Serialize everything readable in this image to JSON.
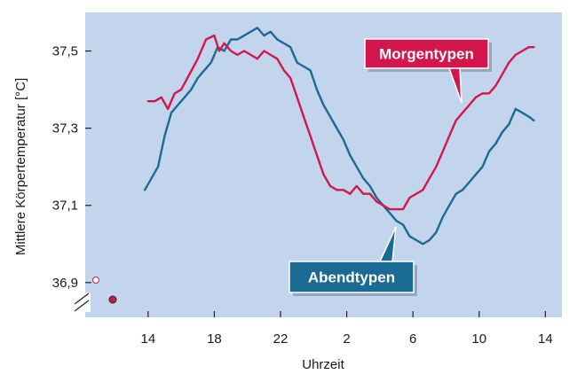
{
  "chart_data": {
    "type": "line",
    "xlabel": "Uhrzeit",
    "ylabel": "Mittlere Körpertemperatur [°C]",
    "x_ticks": [
      {
        "value": 14,
        "label": "14"
      },
      {
        "value": 18,
        "label": "18"
      },
      {
        "value": 22,
        "label": "22"
      },
      {
        "value": 26,
        "label": "2"
      },
      {
        "value": 30,
        "label": "6"
      },
      {
        "value": 34,
        "label": "10"
      },
      {
        "value": 38,
        "label": "14"
      }
    ],
    "y_ticks": [
      {
        "value": 36.9,
        "label": "36,9"
      },
      {
        "value": 37.1,
        "label": "37,1"
      },
      {
        "value": 37.3,
        "label": "37,3"
      },
      {
        "value": 37.5,
        "label": "37,5"
      }
    ],
    "xlim": [
      10.2,
      39
    ],
    "ylim": [
      36.81,
      37.6
    ],
    "grid": false,
    "axis_break": true,
    "colors": {
      "background": "#c2d5ec",
      "morgentypen": "#d3174c",
      "abendtypen": "#1a6b94"
    },
    "series": [
      {
        "name": "Morgentypen",
        "x": [
          14,
          14.4,
          14.8,
          15.2,
          15.6,
          16,
          16.5,
          17,
          17.5,
          18,
          18.3,
          18.6,
          19,
          19.4,
          19.8,
          20.2,
          20.6,
          21,
          21.4,
          21.8,
          22.2,
          22.6,
          23,
          23.4,
          23.8,
          24.2,
          24.6,
          25,
          25.4,
          25.8,
          26.2,
          26.6,
          27,
          27.4,
          27.8,
          28.2,
          28.6,
          29,
          29.4,
          29.8,
          30.2,
          30.6,
          31,
          31.4,
          31.8,
          32.2,
          32.6,
          33,
          33.4,
          33.8,
          34.2,
          34.6,
          35,
          35.4,
          35.8,
          36.2,
          36.6,
          37,
          37.3
        ],
        "y": [
          37.37,
          37.37,
          37.38,
          37.35,
          37.39,
          37.4,
          37.44,
          37.48,
          37.53,
          37.54,
          37.5,
          37.52,
          37.5,
          37.49,
          37.5,
          37.49,
          37.48,
          37.5,
          37.49,
          37.48,
          37.45,
          37.43,
          37.38,
          37.33,
          37.28,
          37.23,
          37.18,
          37.15,
          37.14,
          37.14,
          37.13,
          37.15,
          37.13,
          37.13,
          37.11,
          37.1,
          37.09,
          37.09,
          37.09,
          37.12,
          37.13,
          37.14,
          37.17,
          37.2,
          37.24,
          37.28,
          37.32,
          37.34,
          37.36,
          37.38,
          37.39,
          37.39,
          37.41,
          37.44,
          37.47,
          37.49,
          37.5,
          37.51,
          37.51
        ]
      },
      {
        "name": "Abendtypen",
        "x": [
          13.8,
          14.2,
          14.6,
          15,
          15.4,
          15.8,
          16.2,
          16.6,
          17,
          17.4,
          17.8,
          18.2,
          18.6,
          19,
          19.4,
          19.8,
          20.2,
          20.6,
          21,
          21.4,
          21.8,
          22.2,
          22.6,
          23,
          23.4,
          23.8,
          24.2,
          24.6,
          25,
          25.4,
          25.8,
          26.2,
          26.6,
          27,
          27.4,
          27.8,
          28.2,
          28.6,
          29,
          29.4,
          29.8,
          30.2,
          30.6,
          31,
          31.4,
          31.8,
          32.2,
          32.6,
          33,
          33.4,
          33.8,
          34.2,
          34.6,
          35,
          35.4,
          35.8,
          36.2,
          36.6,
          37,
          37.3
        ],
        "y": [
          37.14,
          37.17,
          37.2,
          37.28,
          37.34,
          37.36,
          37.38,
          37.4,
          37.43,
          37.45,
          37.47,
          37.51,
          37.5,
          37.53,
          37.53,
          37.54,
          37.55,
          37.56,
          37.54,
          37.55,
          37.53,
          37.52,
          37.51,
          37.47,
          37.46,
          37.45,
          37.4,
          37.36,
          37.33,
          37.3,
          37.27,
          37.23,
          37.2,
          37.17,
          37.15,
          37.12,
          37.1,
          37.08,
          37.06,
          37.05,
          37.02,
          37.01,
          37,
          37.01,
          37.03,
          37.07,
          37.1,
          37.13,
          37.14,
          37.16,
          37.18,
          37.2,
          37.24,
          37.26,
          37.29,
          37.31,
          37.35,
          37.34,
          37.33,
          37.32
        ]
      }
    ],
    "annotations": [
      {
        "label": "Morgentypen",
        "series": "Morgentypen"
      },
      {
        "label": "Abendtypen",
        "series": "Abendtypen"
      }
    ]
  }
}
